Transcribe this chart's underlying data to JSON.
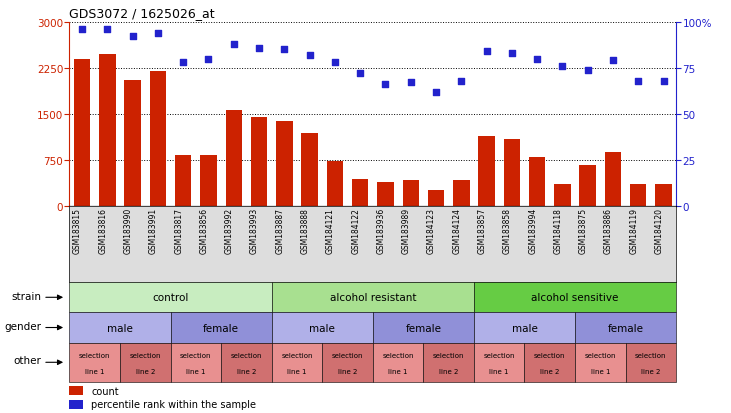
{
  "title": "GDS3072 / 1625026_at",
  "samples": [
    "GSM183815",
    "GSM183816",
    "GSM183990",
    "GSM183991",
    "GSM183817",
    "GSM183856",
    "GSM183992",
    "GSM183993",
    "GSM183887",
    "GSM183888",
    "GSM184121",
    "GSM184122",
    "GSM183936",
    "GSM183989",
    "GSM184123",
    "GSM184124",
    "GSM183857",
    "GSM183858",
    "GSM183994",
    "GSM184118",
    "GSM183875",
    "GSM183886",
    "GSM184119",
    "GSM184120"
  ],
  "bar_values": [
    2400,
    2480,
    2050,
    2200,
    830,
    830,
    1560,
    1450,
    1380,
    1180,
    720,
    440,
    390,
    420,
    260,
    410,
    1130,
    1080,
    790,
    360,
    670,
    880,
    360,
    360
  ],
  "scatter_values": [
    96,
    96,
    92,
    94,
    78,
    80,
    88,
    86,
    85,
    82,
    78,
    72,
    66,
    67,
    62,
    68,
    84,
    83,
    80,
    76,
    74,
    79,
    68,
    68
  ],
  "bar_color": "#cc2200",
  "scatter_color": "#2222cc",
  "ylim_left": [
    0,
    3000
  ],
  "ylim_right": [
    0,
    100
  ],
  "yticks_left": [
    0,
    750,
    1500,
    2250,
    3000
  ],
  "yticks_right": [
    0,
    25,
    50,
    75,
    100
  ],
  "strain_groups": [
    {
      "label": "control",
      "start": 0,
      "end": 8,
      "color": "#c8edc0"
    },
    {
      "label": "alcohol resistant",
      "start": 8,
      "end": 16,
      "color": "#a8e090"
    },
    {
      "label": "alcohol sensitive",
      "start": 16,
      "end": 24,
      "color": "#66cc44"
    }
  ],
  "gender_groups": [
    {
      "label": "male",
      "start": 0,
      "end": 4,
      "color": "#b0b0e8"
    },
    {
      "label": "female",
      "start": 4,
      "end": 8,
      "color": "#9090d8"
    },
    {
      "label": "male",
      "start": 8,
      "end": 12,
      "color": "#b0b0e8"
    },
    {
      "label": "female",
      "start": 12,
      "end": 16,
      "color": "#9090d8"
    },
    {
      "label": "male",
      "start": 16,
      "end": 20,
      "color": "#b0b0e8"
    },
    {
      "label": "female",
      "start": 20,
      "end": 24,
      "color": "#9090d8"
    }
  ],
  "other_groups": [
    {
      "label": "selection\nline 1",
      "start": 0,
      "end": 2,
      "color": "#e89090"
    },
    {
      "label": "selection\nline 2",
      "start": 2,
      "end": 4,
      "color": "#d07070"
    },
    {
      "label": "selection\nline 1",
      "start": 4,
      "end": 6,
      "color": "#e89090"
    },
    {
      "label": "selection\nline 2",
      "start": 6,
      "end": 8,
      "color": "#d07070"
    },
    {
      "label": "selection\nline 1",
      "start": 8,
      "end": 10,
      "color": "#e89090"
    },
    {
      "label": "selection\nline 2",
      "start": 10,
      "end": 12,
      "color": "#d07070"
    },
    {
      "label": "selection\nline 1",
      "start": 12,
      "end": 14,
      "color": "#e89090"
    },
    {
      "label": "selection\nline 2",
      "start": 14,
      "end": 16,
      "color": "#d07070"
    },
    {
      "label": "selection\nline 1",
      "start": 16,
      "end": 18,
      "color": "#e89090"
    },
    {
      "label": "selection\nline 2",
      "start": 18,
      "end": 20,
      "color": "#d07070"
    },
    {
      "label": "selection\nline 1",
      "start": 20,
      "end": 22,
      "color": "#e89090"
    },
    {
      "label": "selection\nline 2",
      "start": 22,
      "end": 24,
      "color": "#d07070"
    }
  ],
  "legend_items": [
    {
      "label": "count",
      "color": "#cc2200"
    },
    {
      "label": "percentile rank within the sample",
      "color": "#2222cc"
    }
  ],
  "row_labels": [
    "strain",
    "gender",
    "other"
  ],
  "background_color": "#ffffff"
}
